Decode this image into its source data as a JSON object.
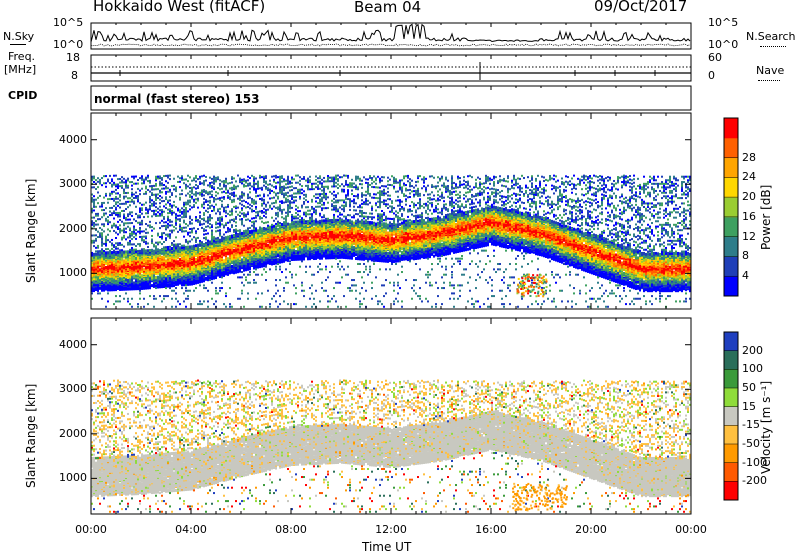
{
  "header": {
    "station": "Hokkaido West (fitACF)",
    "beam": "Beam 04",
    "date": "09/Oct/2017"
  },
  "top_panels": {
    "nsky_label": "N.Sky",
    "nsearch_label": "N.Search",
    "nsky_ticks": [
      "10^5",
      "10^0"
    ],
    "nsearch_ticks": [
      "10^5",
      "10^0"
    ],
    "freq_label": "Freq.",
    "freq_unit": "[MHz]",
    "freq_ticks": [
      "18",
      "8"
    ],
    "nave_label": "Nave",
    "nave_ticks": [
      "60",
      "0"
    ],
    "cpid_label": "CPID",
    "cpid_text": "normal (fast stereo) 153"
  },
  "chart_data": [
    {
      "type": "heatmap",
      "parameter": "Power",
      "ylabel": "Slant Range [km]",
      "xlabel": "",
      "ylim": [
        200,
        4600
      ],
      "x_ticks": [
        "00:00",
        "04:00",
        "08:00",
        "12:00",
        "16:00",
        "20:00",
        "00:00"
      ],
      "y_ticks": [
        1000,
        2000,
        3000,
        4000
      ],
      "colorbar": {
        "label": "Power [dB]",
        "ticks": [
          4,
          8,
          12,
          16,
          20,
          24,
          28
        ],
        "colors": [
          "#0000ff",
          "#1f3fb8",
          "#2e7d8a",
          "#3ea060",
          "#9acd32",
          "#ffd700",
          "#ffa500",
          "#ff6000",
          "#ff0000"
        ]
      },
      "echo_band_km": {
        "hours": [
          0,
          2,
          4,
          6,
          8,
          10,
          12,
          14,
          16,
          18,
          20,
          22,
          24
        ],
        "center": [
          1100,
          1150,
          1250,
          1550,
          1800,
          1850,
          1750,
          1900,
          2150,
          1900,
          1500,
          1100,
          1100
        ]
      }
    },
    {
      "type": "heatmap",
      "parameter": "Velocity",
      "ylabel": "Slant Range [km]",
      "xlabel": "Time UT",
      "ylim": [
        200,
        4600
      ],
      "x_ticks": [
        "00:00",
        "04:00",
        "08:00",
        "12:00",
        "16:00",
        "20:00",
        "00:00"
      ],
      "y_ticks": [
        1000,
        2000,
        3000,
        4000
      ],
      "colorbar": {
        "label": "Velocity [m s⁻¹]",
        "unit_exp": "-1",
        "ticks": [
          200,
          100,
          50,
          15,
          -15,
          -50,
          -100,
          -200
        ],
        "colors": [
          "#1f3fbf",
          "#2a6e5a",
          "#3a9a3a",
          "#8fdc3a",
          "#c8c8c0",
          "#ffc040",
          "#ff9a00",
          "#ff5a00",
          "#ff0000"
        ]
      }
    }
  ]
}
